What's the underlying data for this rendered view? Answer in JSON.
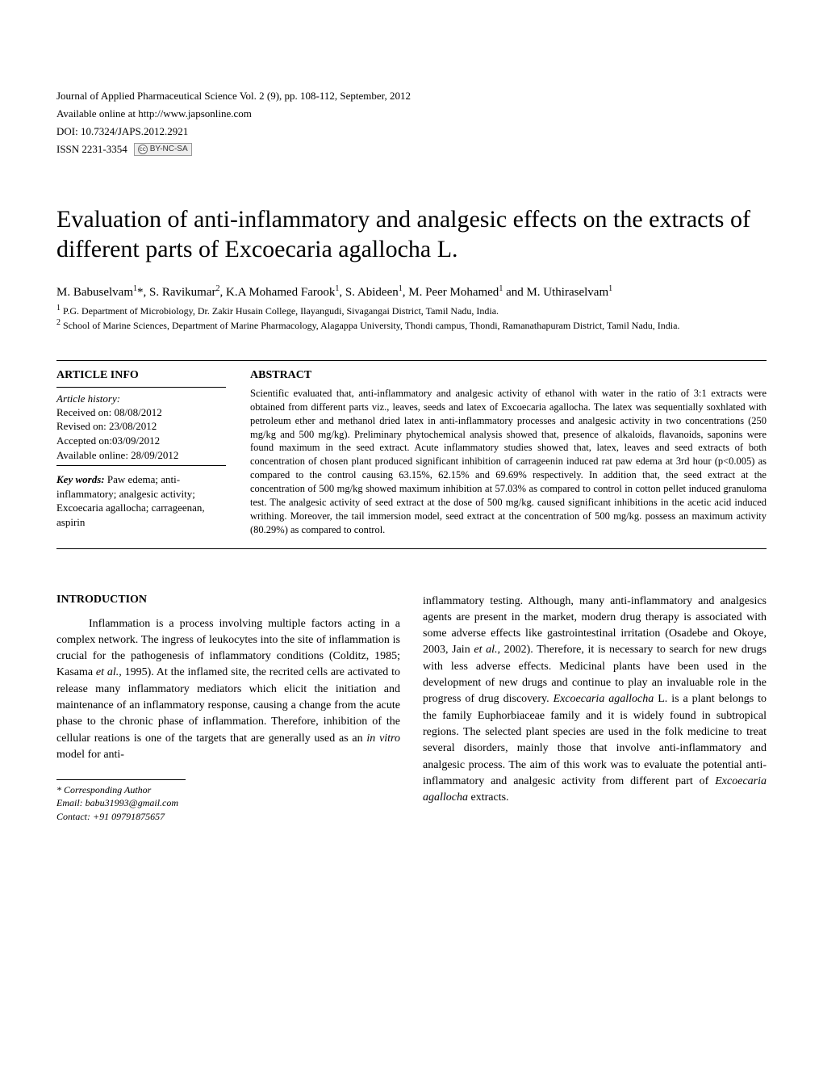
{
  "journal": {
    "line1": "Journal of Applied Pharmaceutical Science Vol. 2 (9), pp. 108-112, September, 2012",
    "line2": "Available online at http://www.japsonline.com",
    "doi": "DOI: 10.7324/JAPS.2012.2921",
    "issn": "ISSN 2231-3354",
    "cc_label": "BY-NC-SA"
  },
  "title": "Evaluation of anti-inflammatory and analgesic effects on the extracts of different parts of Excoecaria agallocha L.",
  "authors_html": "M. Babuselvam<sup>1</sup>*, S. Ravikumar<sup>2</sup>, K.A Mohamed Farook<sup>1</sup>, S. Abideen<sup>1</sup>, M. Peer Mohamed<sup>1</sup> and M. Uthiraselvam<sup>1</sup>",
  "affiliations": {
    "a1": "P.G. Department of Microbiology, Dr. Zakir Husain College, Ilayangudi, Sivagangai District, Tamil Nadu, India.",
    "a2": "School of Marine Sciences, Department of Marine Pharmacology, Alagappa University, Thondi campus, Thondi, Ramanathapuram District, Tamil Nadu, India."
  },
  "article_info": {
    "heading": "ARTICLE INFO",
    "history_label": "Article history:",
    "received": "Received on: 08/08/2012",
    "revised": "Revised on: 23/08/2012",
    "accepted": "Accepted on:03/09/2012",
    "online": "Available online: 28/09/2012",
    "keywords_label": "Key words:",
    "keywords": " Paw edema; anti-inflammatory; analgesic activity; Excoecaria agallocha; carrageenan, aspirin"
  },
  "abstract": {
    "heading": "ABSTRACT",
    "text": "Scientific evaluated that, anti-inflammatory and analgesic activity of ethanol with water in the ratio of 3:1 extracts were obtained from different parts viz., leaves, seeds and latex of Excoecaria agallocha. The latex was sequentially soxhlated with petroleum ether and methanol dried latex in anti-inflammatory processes and analgesic activity in two concentrations (250 mg/kg and 500 mg/kg). Preliminary phytochemical analysis showed that, presence of alkaloids, flavanoids, saponins were found maximum in the seed extract. Acute inflammatory studies showed that, latex, leaves and seed extracts of both concentration of chosen plant produced significant inhibition of carrageenin induced rat paw edema at 3rd hour (p<0.005) as compared to the control causing 63.15%, 62.15% and 69.69% respectively. In addition that, the seed extract at the concentration of 500 mg/kg showed maximum inhibition at 57.03% as compared to control in cotton pellet induced granuloma test. The analgesic activity of seed extract at the dose of 500 mg/kg. caused significant inhibitions in the acetic acid induced writhing. Moreover, the tail immersion model, seed extract at the concentration of 500 mg/kg. possess an maximum activity (80.29%) as compared to control."
  },
  "introduction": {
    "heading": "INTRODUCTION",
    "col1_html": "<span class=\"indent\"></span>Inflammation is a process involving multiple factors acting in a complex network.  The ingress of leukocytes into the site of inflammation is crucial for the pathogenesis of inflammatory conditions (Colditz, 1985; Kasama <span class=\"italic\">et al.,</span> 1995). At the inflamed site, the recrited cells are activated to release many inflammatory mediators which elicit the initiation and maintenance of an inflammatory response, causing a change from the acute phase to the chronic phase of inflammation. Therefore, inhibition of the cellular reations is one of the targets that are generally used as an <span class=\"italic\">in vitro</span> model for anti-",
    "col2_html": "inflammatory testing.  Although, many anti-inflammatory and analgesics agents are present in the market, modern drug therapy is associated with some adverse effects like gastrointestinal irritation (Osadebe and Okoye, 2003, Jain <span class=\"italic\">et al.,</span> 2002).  Therefore, it is necessary to search for new drugs with less adverse effects.  Medicinal plants have been used in the development of new drugs and continue to play an invaluable role in the progress of drug discovery. <span class=\"italic\">Excoecaria agallocha</span>  L. is a plant belongs to the family Euphorbiaceae family and it is widely found in subtropical regions.  The selected plant species are used in the folk medicine to treat several disorders, mainly those that involve anti-inflammatory and analgesic process.  The aim of this work was to evaluate the potential anti-inflammatory and analgesic activity from different part of <span class=\"italic\">Excoecaria agallocha</span> extracts."
  },
  "footnote": {
    "corresponding": "* Corresponding Author",
    "email": "Email: babu31993@gmail.com",
    "contact": "Contact: +91 09791875657"
  }
}
